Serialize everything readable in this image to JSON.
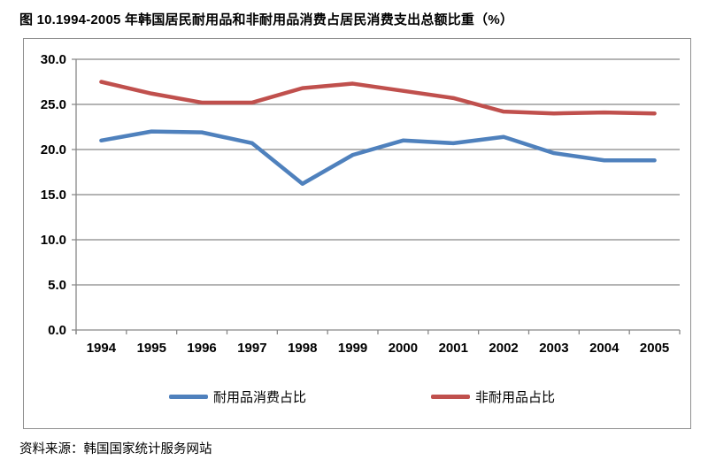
{
  "page": {
    "title": "图 10.1994-2005 年韩国居民耐用品和非耐用品消费占居民消费支出总额比重（%）",
    "source": "资料来源：韩国国家统计服务网站"
  },
  "chart_data": {
    "type": "line",
    "title": "图 10.1994-2005 年韩国居民耐用品和非耐用品消费占居民消费支出总额比重（%）",
    "categories": [
      "1994",
      "1995",
      "1996",
      "1997",
      "1998",
      "1999",
      "2000",
      "2001",
      "2002",
      "2003",
      "2004",
      "2005"
    ],
    "series": [
      {
        "name": "耐用品消费占比",
        "color": "#4F81BD",
        "values": [
          21.0,
          22.0,
          21.9,
          20.7,
          16.2,
          19.4,
          21.0,
          20.7,
          21.4,
          19.6,
          18.8,
          18.8
        ]
      },
      {
        "name": "非耐用品占比",
        "color": "#C0504D",
        "values": [
          27.5,
          26.2,
          25.2,
          25.2,
          26.8,
          27.3,
          26.5,
          25.7,
          24.2,
          24.0,
          24.1,
          24.0
        ]
      }
    ],
    "xlabel": "",
    "ylabel": "",
    "ylim": [
      0,
      30
    ],
    "ytick_step": 5,
    "ytick_labels": [
      "0.0",
      "5.0",
      "10.0",
      "15.0",
      "20.0",
      "25.0",
      "30.0"
    ],
    "grid": true,
    "grid_color": "#878787",
    "axis_color": "#878787",
    "legend_position": "bottom"
  }
}
